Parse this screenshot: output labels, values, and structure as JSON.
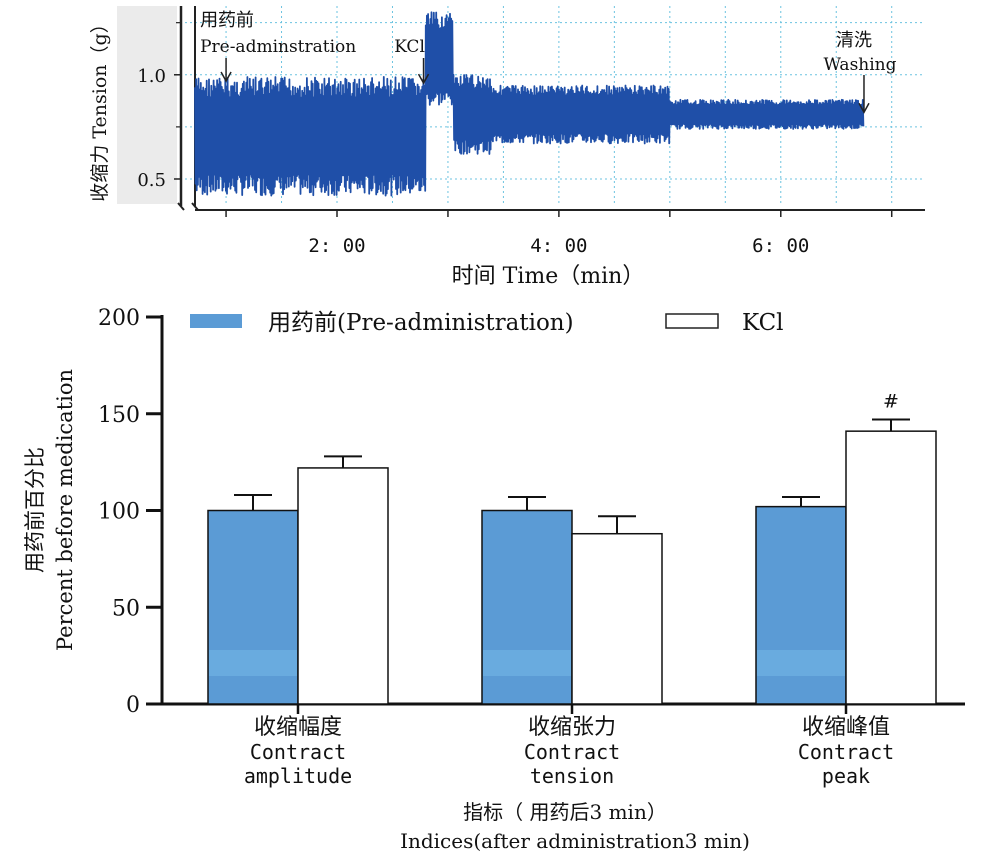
{
  "chart_data": [
    {
      "type": "line",
      "ylabel": "收缩力 Tension（g）",
      "xlabel": "时间  Time（min）",
      "ylim": [
        0.38,
        1.33
      ],
      "xlim": [
        0.72,
        7.3
      ],
      "y_ticks": [
        "1.0",
        "0.5"
      ],
      "y_tick_values": [
        1.0,
        0.5
      ],
      "x_ticks": [
        "2: 00",
        "4: 00",
        "6: 00"
      ],
      "x_tick_values": [
        2,
        4,
        6
      ],
      "grid": true,
      "annotations": [
        {
          "line1": "用药前",
          "line2": "Pre-adminstration",
          "x": 1.0,
          "y": 0.97
        },
        {
          "line1": "",
          "line2": "KCl",
          "x": 2.78,
          "y": 0.96
        },
        {
          "line1": "清洗",
          "line2": "Washing",
          "x": 6.75,
          "y": 0.82
        }
      ],
      "series": [
        {
          "phases": [
            {
              "x_start": 0.72,
              "x_end": 2.8,
              "min": 0.42,
              "max": 0.99
            },
            {
              "x_start": 2.8,
              "x_end": 3.05,
              "min": 0.85,
              "max": 1.3
            },
            {
              "x_start": 3.05,
              "x_end": 3.4,
              "min": 0.62,
              "max": 1.0
            },
            {
              "x_start": 3.4,
              "x_end": 5.0,
              "min": 0.67,
              "max": 0.95
            },
            {
              "x_start": 5.0,
              "x_end": 6.75,
              "min": 0.74,
              "max": 0.88
            }
          ]
        }
      ]
    },
    {
      "type": "bar",
      "ylabel_cn": "用药前百分比",
      "ylabel_en": "Percent before medication",
      "xlabel_cn": "指标（ 用药后3 min）",
      "xlabel_en": "Indices(after administration3 min)",
      "ylim": [
        0,
        200
      ],
      "y_ticks": [
        "0",
        "50",
        "100",
        "150",
        "200"
      ],
      "y_tick_values": [
        0,
        50,
        100,
        150,
        200
      ],
      "categories": [
        {
          "cn": "收缩幅度",
          "en1": "Contract",
          "en2": "amplitude"
        },
        {
          "cn": "收缩张力",
          "en1": "Contract",
          "en2": "tension"
        },
        {
          "cn": "收缩峰值",
          "en1": "Contract",
          "en2": "peak"
        }
      ],
      "series": [
        {
          "name": "用药前(Pre-administration)",
          "color": "#5b9bd5",
          "values": [
            100,
            100,
            102
          ],
          "errors": [
            8,
            7,
            5
          ]
        },
        {
          "name": "KCl",
          "color": "#ffffff",
          "values": [
            122,
            88,
            141
          ],
          "errors": [
            6,
            9,
            6
          ]
        }
      ],
      "significance": [
        {
          "category_index": 2,
          "series_index": 1,
          "mark": "#",
          "color": "#e02020"
        }
      ],
      "legend_position": "top"
    }
  ]
}
